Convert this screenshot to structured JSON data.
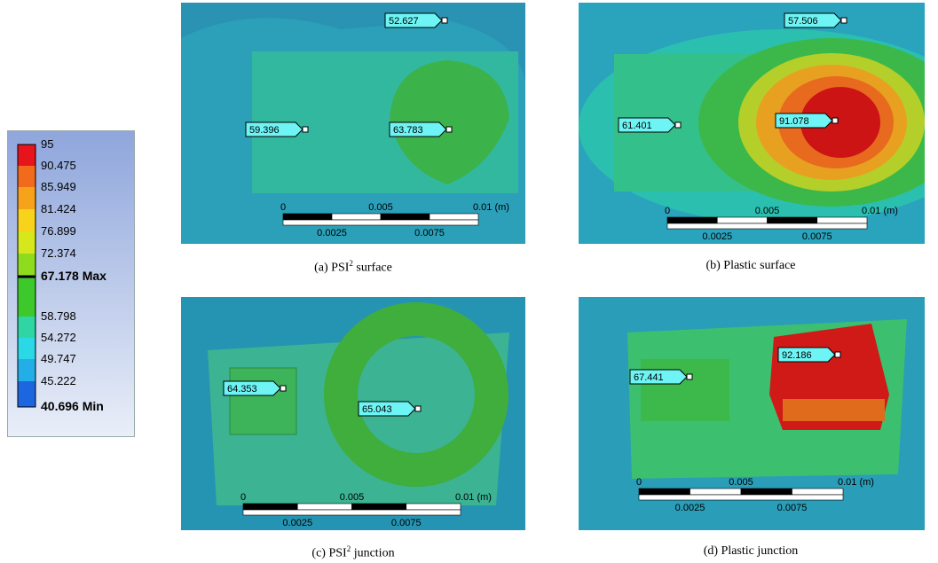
{
  "legend": {
    "items": [
      {
        "label": "95",
        "color": "#e8141b",
        "bold": false
      },
      {
        "label": "90.475",
        "color": "#f26b1d",
        "bold": false
      },
      {
        "label": "85.949",
        "color": "#f7a21b",
        "bold": false
      },
      {
        "label": "81.424",
        "color": "#f7d31b",
        "bold": false
      },
      {
        "label": "76.899",
        "color": "#d6e81b",
        "bold": false
      },
      {
        "label": "72.374",
        "color": "#8fdc1e",
        "bold": false
      },
      {
        "label": "67.178 Max",
        "color": "#3dc82c",
        "bold": true
      },
      {
        "label": "58.798",
        "color": "#2fd6a3",
        "bold": false
      },
      {
        "label": "54.272",
        "color": "#2ad8e6",
        "bold": false
      },
      {
        "label": "49.747",
        "color": "#24aee8",
        "bold": false
      },
      {
        "label": "45.222",
        "color": "#1c66e0",
        "bold": false
      },
      {
        "label": "40.696 Min",
        "color": "#1020d0",
        "bold": true
      }
    ]
  },
  "panels": [
    {
      "probes": [
        "52.627",
        "59.396",
        "63.783"
      ],
      "scale": {
        "top": [
          "0",
          "0.005",
          "0.01 (m)"
        ],
        "bottom": [
          "0.0025",
          "0.0075"
        ]
      },
      "caption": {
        "prefix": "(a) PSI",
        "sup": "2",
        "suffix": " surface"
      }
    },
    {
      "probes": [
        "57.506",
        "61.401",
        "91.078"
      ],
      "scale": {
        "top": [
          "0",
          "0.005",
          "0.01 (m)"
        ],
        "bottom": [
          "0.0025",
          "0.0075"
        ]
      },
      "caption": {
        "prefix": "(b) Plastic surface"
      }
    },
    {
      "probes": [
        "64.353",
        "65.043"
      ],
      "scale": {
        "top": [
          "0",
          "0.005",
          "0.01 (m)"
        ],
        "bottom": [
          "0.0025",
          "0.0075"
        ]
      },
      "caption": {
        "prefix": "(c) PSI",
        "sup": "2",
        "suffix": " junction"
      }
    },
    {
      "probes": [
        "67.441",
        "92.186"
      ],
      "scale": {
        "top": [
          "0",
          "0.005",
          "0.01 (m)"
        ],
        "bottom": [
          "0.0025",
          "0.0075"
        ]
      },
      "caption": {
        "prefix": "(d) Plastic junction"
      }
    }
  ]
}
